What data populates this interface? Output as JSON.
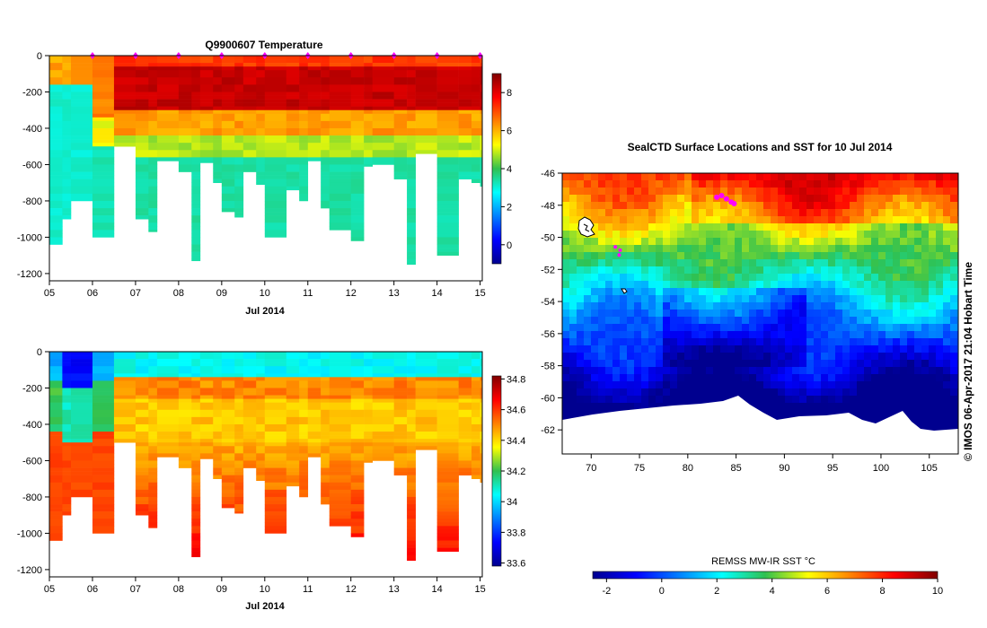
{
  "chart_data": [
    {
      "type": "heatmap",
      "title": "Q9900607  Temperature",
      "xlabel": "Jul 2014",
      "x_tick_labels": [
        "05",
        "06",
        "07",
        "08",
        "09",
        "10",
        "11",
        "12",
        "13",
        "14",
        "15"
      ],
      "y_tick_values": [
        0,
        -200,
        -400,
        -600,
        -800,
        -1000,
        -1200
      ],
      "y_tick_labels": [
        "0",
        "-200",
        "-400",
        "-600",
        "-800",
        "-1000",
        "-1200"
      ],
      "xlim": [
        5,
        15.05
      ],
      "ylim": [
        -1240,
        0
      ],
      "colorbar": {
        "min": -1,
        "max": 9,
        "ticks": [
          0,
          2,
          4,
          6,
          8
        ],
        "tick_labels": [
          "0",
          "2",
          "4",
          "6",
          "8"
        ],
        "colormap": "jet"
      },
      "profile_marker_days": [
        6,
        7,
        8,
        9,
        10,
        11,
        12,
        13,
        14,
        15
      ],
      "variable": "temperature",
      "profile_days": [
        5,
        5.3,
        5.5,
        6,
        6.5,
        7,
        7.3,
        7.5,
        8,
        8.3,
        8.5,
        8.8,
        9,
        9.3,
        9.5,
        9.8,
        10,
        10.5,
        10.8,
        11,
        11.3,
        11.5,
        12,
        12.3,
        12.5,
        13,
        13.3,
        13.5,
        14,
        14.5,
        14.8,
        15
      ],
      "profile_max_depths": [
        1040,
        900,
        800,
        1000,
        500,
        900,
        970,
        580,
        640,
        1130,
        590,
        700,
        860,
        890,
        640,
        710,
        1000,
        740,
        800,
        580,
        840,
        960,
        1020,
        610,
        600,
        680,
        1150,
        540,
        1100,
        680,
        700,
        720
      ]
    },
    {
      "type": "heatmap",
      "title": "",
      "xlabel": "Jul 2014",
      "x_tick_labels": [
        "05",
        "06",
        "07",
        "08",
        "09",
        "10",
        "11",
        "12",
        "13",
        "14",
        "15"
      ],
      "y_tick_values": [
        0,
        -200,
        -400,
        -600,
        -800,
        -1000,
        -1200
      ],
      "y_tick_labels": [
        "0",
        "-200",
        "-400",
        "-600",
        "-800",
        "-1000",
        "-1200"
      ],
      "xlim": [
        5,
        15.05
      ],
      "ylim": [
        -1240,
        0
      ],
      "colorbar": {
        "min": 33.58,
        "max": 34.82,
        "ticks": [
          33.6,
          33.8,
          34,
          34.2,
          34.4,
          34.6,
          34.8
        ],
        "tick_labels": [
          "33.6",
          "33.8",
          "34",
          "34.2",
          "34.4",
          "34.6",
          "34.8"
        ],
        "colormap": "jet"
      },
      "variable": "salinity",
      "profile_days": [
        5,
        5.3,
        5.5,
        6,
        6.5,
        7,
        7.3,
        7.5,
        8,
        8.3,
        8.5,
        8.8,
        9,
        9.3,
        9.5,
        9.8,
        10,
        10.5,
        10.8,
        11,
        11.3,
        11.5,
        12,
        12.3,
        12.5,
        13,
        13.3,
        13.5,
        14,
        14.5,
        14.8,
        15
      ],
      "profile_max_depths": [
        1040,
        900,
        800,
        1000,
        500,
        900,
        970,
        580,
        640,
        1130,
        590,
        700,
        860,
        890,
        640,
        710,
        1000,
        740,
        800,
        580,
        840,
        960,
        1020,
        610,
        600,
        680,
        1150,
        540,
        1100,
        680,
        700,
        720
      ]
    },
    {
      "type": "heatmap",
      "title": "SealCTD Surface Locations and SST for 10 Jul 2014",
      "xlabel": "",
      "ylabel": "",
      "x_tick_values": [
        70,
        75,
        80,
        85,
        90,
        95,
        100,
        105
      ],
      "x_tick_labels": [
        "70",
        "75",
        "80",
        "85",
        "90",
        "95",
        "100",
        "105"
      ],
      "y_tick_values": [
        -46,
        -48,
        -50,
        -52,
        -54,
        -56,
        -58,
        -60,
        -62
      ],
      "y_tick_labels": [
        "-46",
        "-48",
        "-50",
        "-52",
        "-54",
        "-56",
        "-58",
        "-60",
        "-62"
      ],
      "xlim": [
        67,
        108
      ],
      "ylim": [
        -63.5,
        -46
      ],
      "colorbar": {
        "label": "REMSS MW-IR SST °C",
        "min": -2.5,
        "max": 10,
        "ticks": [
          -2,
          0,
          2,
          4,
          6,
          8,
          10
        ],
        "tick_labels": [
          "-2",
          "0",
          "2",
          "4",
          "6",
          "8",
          "10"
        ],
        "colormap": "jet"
      },
      "seal_track": [
        {
          "lon": 83.0,
          "lat": -47.5
        },
        {
          "lon": 83.5,
          "lat": -47.4
        },
        {
          "lon": 84.0,
          "lat": -47.6
        },
        {
          "lon": 84.5,
          "lat": -47.8
        },
        {
          "lon": 84.8,
          "lat": -47.9
        }
      ],
      "seal_track_sparse": [
        {
          "lon": 72.5,
          "lat": -50.6
        },
        {
          "lon": 73.0,
          "lat": -50.8
        },
        {
          "lon": 72.9,
          "lat": -51.1
        }
      ],
      "credit_text": "©  IMOS 06-Apr-2017 21:04 Hobart Time"
    }
  ]
}
